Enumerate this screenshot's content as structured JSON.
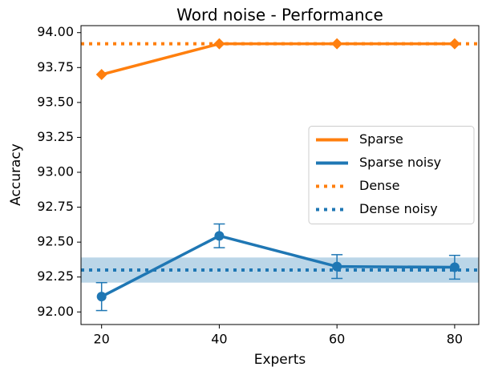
{
  "chart_data": {
    "type": "line",
    "title": "Word noise - Performance",
    "xlabel": "Experts",
    "ylabel": "Accuracy",
    "x": [
      20,
      40,
      60,
      80
    ],
    "series": [
      {
        "name": "Sparse",
        "color": "#ff7f0e",
        "marker": "diamond",
        "values": [
          93.7,
          93.92,
          93.92,
          93.92
        ]
      },
      {
        "name": "Sparse noisy",
        "color": "#1f77b4",
        "marker": "circle",
        "values": [
          92.11,
          92.545,
          92.325,
          92.32
        ],
        "errors": [
          0.1,
          0.085,
          0.085,
          0.085
        ]
      },
      {
        "name": "Dense",
        "color": "#ff7f0e",
        "style": "dotted",
        "value": 93.92
      },
      {
        "name": "Dense noisy",
        "color": "#1f77b4",
        "style": "dotted",
        "value": 92.3,
        "band": [
          92.21,
          92.39
        ]
      }
    ],
    "xlim": [
      16.5,
      84.1
    ],
    "xticks": [
      20,
      40,
      60,
      80
    ],
    "ylim": [
      91.91,
      94.05
    ],
    "yticks": [
      {
        "value": 92.0,
        "label": "92.00"
      },
      {
        "value": 92.25,
        "label": "92.25"
      },
      {
        "value": 92.5,
        "label": "92.50"
      },
      {
        "value": 92.75,
        "label": "92.75"
      },
      {
        "value": 93.0,
        "label": "93.00"
      },
      {
        "value": 93.25,
        "label": "93.25"
      },
      {
        "value": 93.5,
        "label": "93.50"
      },
      {
        "value": 93.75,
        "label": "93.75"
      },
      {
        "value": 94.0,
        "label": "94.00"
      }
    ],
    "legend": "center right"
  }
}
